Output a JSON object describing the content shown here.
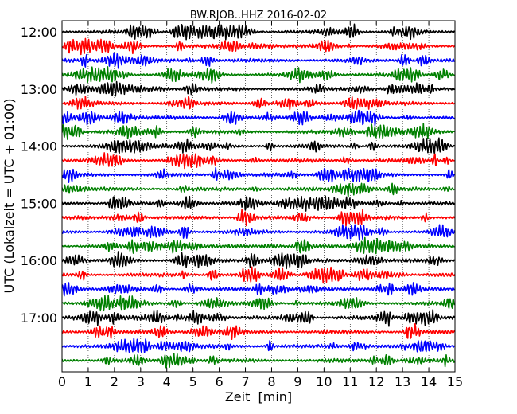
{
  "chart_data": {
    "type": "line",
    "title": "BW.RJOB..HHZ 2016-02-02",
    "xlabel": "Zeit  [min]",
    "ylabel": "UTC (Lokalzeit = UTC + 01:00)",
    "xlim": [
      0,
      15
    ],
    "x_ticks": [
      "0",
      "1",
      "2",
      "3",
      "4",
      "5",
      "6",
      "7",
      "8",
      "9",
      "10",
      "11",
      "12",
      "13",
      "14",
      "15"
    ],
    "y_ticks": [
      "12:00",
      "13:00",
      "14:00",
      "15:00",
      "16:00",
      "17:00"
    ],
    "trace_interval_minutes": 15,
    "trace_start": "12:00",
    "trace_count": 24,
    "trace_colors": [
      "#000000",
      "#ff0000",
      "#0000ff",
      "#008000"
    ],
    "grid": true
  }
}
